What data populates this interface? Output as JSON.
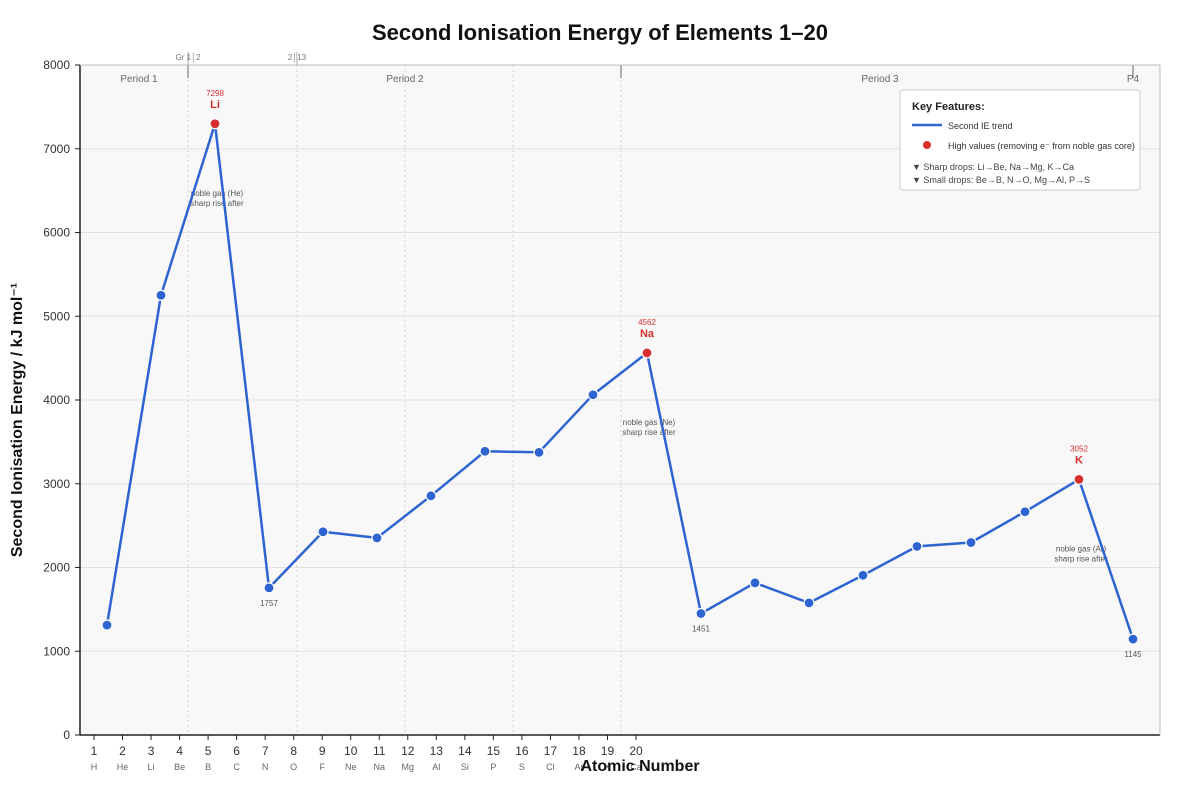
{
  "chart_data": {
    "type": "line",
    "title": "Second Ionisation Energy of Elements 1–20",
    "xlabel": "Atomic Number",
    "ylabel": "Second Ionisation Energy / kJ mol⁻¹",
    "ylim": [
      0,
      8000
    ],
    "yticks": [
      0,
      1000,
      2000,
      3000,
      4000,
      5000,
      6000,
      7000,
      8000
    ],
    "grid": true,
    "x_numbers": [
      "1",
      "2",
      "3",
      "4",
      "5",
      "6",
      "7",
      "8",
      "9",
      "10",
      "11",
      "12",
      "13",
      "14",
      "15",
      "16",
      "17",
      "18",
      "19",
      "20"
    ],
    "x_symbols": [
      "H",
      "He",
      "Li",
      "Be",
      "B",
      "C",
      "N",
      "O",
      "F",
      "Ne",
      "Na",
      "Mg",
      "Al",
      "Si",
      "P",
      "S",
      "Cl",
      "Ar",
      "K",
      "Ca"
    ],
    "series": [
      {
        "name": "Second IE trend",
        "color": "#2e64d1",
        "values": [
          1312,
          5251,
          7298,
          1757,
          2427,
          2353,
          2856,
          3388,
          3375,
          4063,
          4562,
          1451,
          1817,
          1577,
          1907,
          2252,
          2298,
          2666,
          3052,
          1145
        ]
      }
    ],
    "highlight_indices": [
      2,
      10,
      18
    ],
    "highlight_color": "#d62f2f",
    "peak_labels": [
      {
        "index": 2,
        "value": "7298",
        "symbol": "Li"
      },
      {
        "index": 10,
        "value": "4562",
        "symbol": "Na"
      },
      {
        "index": 18,
        "value": "3052",
        "symbol": "K"
      }
    ],
    "trough_labels": [
      {
        "index": 3,
        "value": "1757"
      },
      {
        "index": 11,
        "value": "1451"
      },
      {
        "index": 19,
        "value": "1145"
      }
    ],
    "annotations": [
      {
        "index": 2,
        "line1": "noble gas (He)",
        "line2": "sharp rise after"
      },
      {
        "index": 10,
        "line1": "noble gas (Ne)",
        "line2": "sharp rise after"
      },
      {
        "index": 18,
        "line1": "noble gas (Ar)",
        "line2": "sharp rise after"
      }
    ],
    "periods": [
      "Period 1",
      "Period 2",
      "Period 3",
      "P4"
    ],
    "group_boundary_labels": [
      "Gr 1│2",
      "2│13"
    ],
    "legend": {
      "title": "Key Features:",
      "line_label": "Second IE trend",
      "dot_label": "High values (removing e⁻ from noble gas core)",
      "note1": "▼ Sharp drops: Li→Be, Na→Mg, K→Ca",
      "note2": "▼ Small drops: Be→B, N→O, Mg→Al, P→S",
      "position": "top-right"
    }
  }
}
